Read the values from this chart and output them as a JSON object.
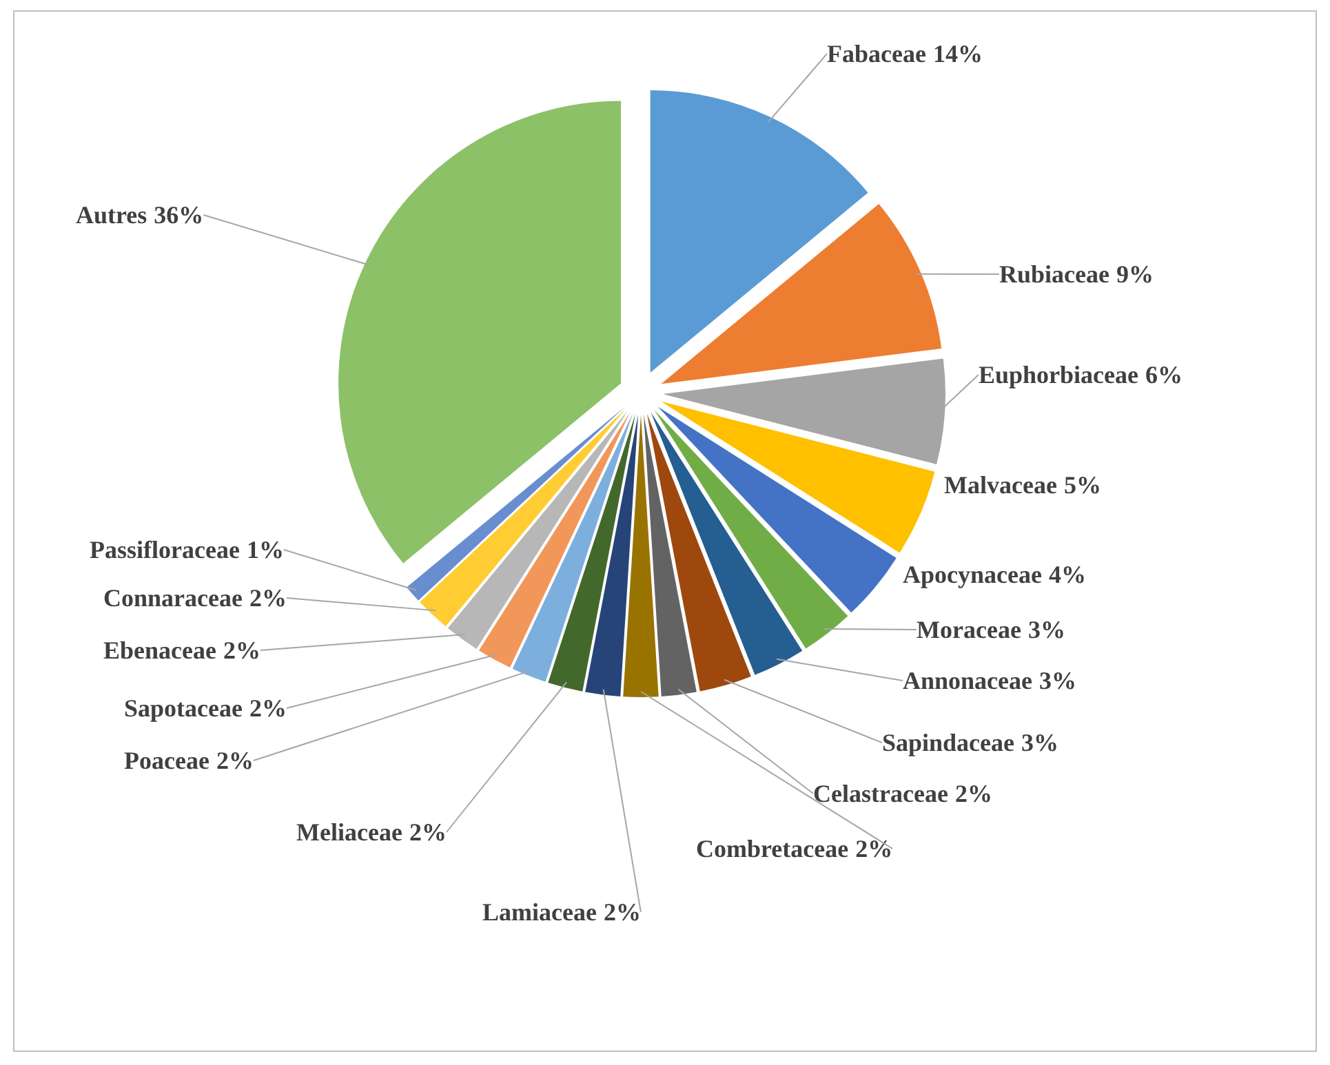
{
  "chart_data": {
    "type": "pie",
    "categories": [
      "Fabaceae",
      "Rubiaceae",
      "Euphorbiaceae",
      "Malvaceae",
      "Apocynaceae",
      "Moraceae",
      "Annonaceae",
      "Sapindaceae",
      "Celastraceae",
      "Combretaceae",
      "Lamiaceae",
      "Meliaceae",
      "Poaceae",
      "Sapotaceae",
      "Ebenaceae",
      "Connaraceae",
      "Passifloraceae",
      "Autres"
    ],
    "values": [
      14,
      9,
      6,
      5,
      4,
      3,
      3,
      3,
      2,
      2,
      2,
      2,
      2,
      2,
      2,
      2,
      1,
      36
    ],
    "colors": [
      "#5b9bd5",
      "#ed7d31",
      "#a5a5a5",
      "#ffc000",
      "#4472c4",
      "#70ad47",
      "#255e91",
      "#9e480e",
      "#636363",
      "#997300",
      "#264478",
      "#43682b",
      "#7cafdd",
      "#f1975a",
      "#b7b7b7",
      "#ffcd33",
      "#698ed0",
      "#8cc168"
    ],
    "value_labels": [
      "14%",
      "9%",
      "6%",
      "5%",
      "4%",
      "3%",
      "3%",
      "3%",
      "2%",
      "2%",
      "2%",
      "2%",
      "2%",
      "2%",
      "2%",
      "2%",
      "1%",
      "36%"
    ]
  }
}
